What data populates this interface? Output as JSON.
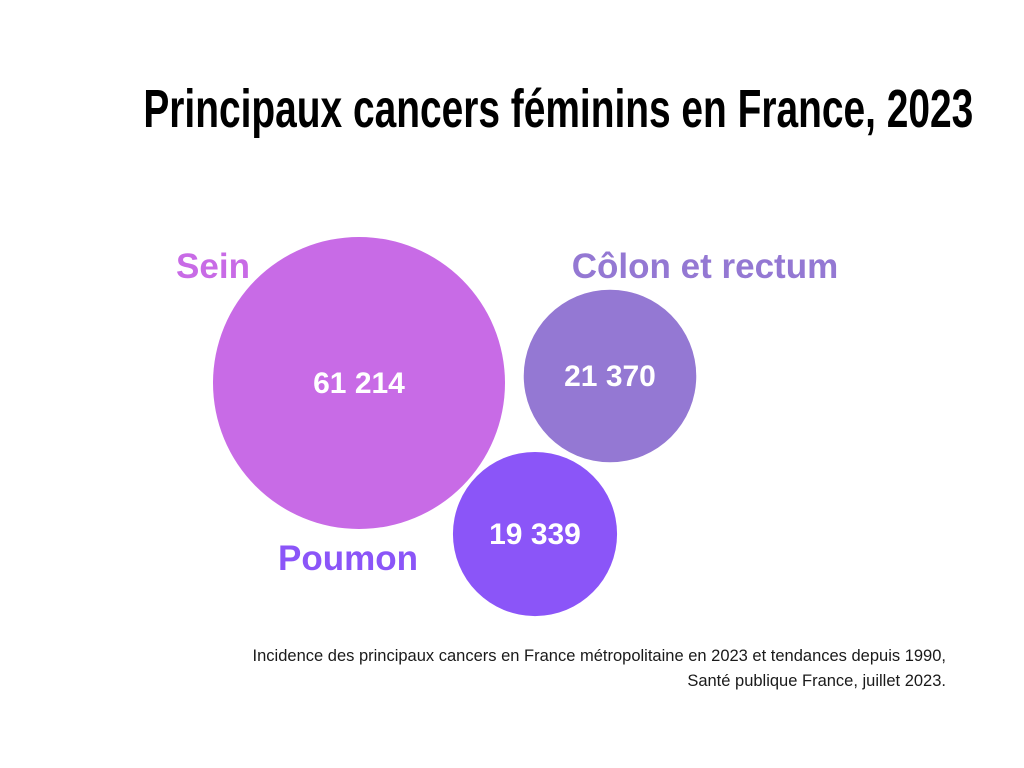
{
  "chart_data": {
    "type": "bubble",
    "title": "Principaux cancers féminins en France, 2023",
    "series": [
      {
        "name": "Sein",
        "value": 61214,
        "label": "61 214",
        "color": "#c86be6"
      },
      {
        "name": "Côlon et rectum",
        "value": 21370,
        "label": "21 370",
        "color": "#9478d3"
      },
      {
        "name": "Poumon",
        "value": 19339,
        "label": "19 339",
        "color": "#8b55f8"
      }
    ]
  },
  "source": {
    "line1": "Incidence des principaux cancers en France métropolitaine en 2023 et tendances depuis 1990,",
    "line2": "Santé publique France, juillet 2023."
  }
}
